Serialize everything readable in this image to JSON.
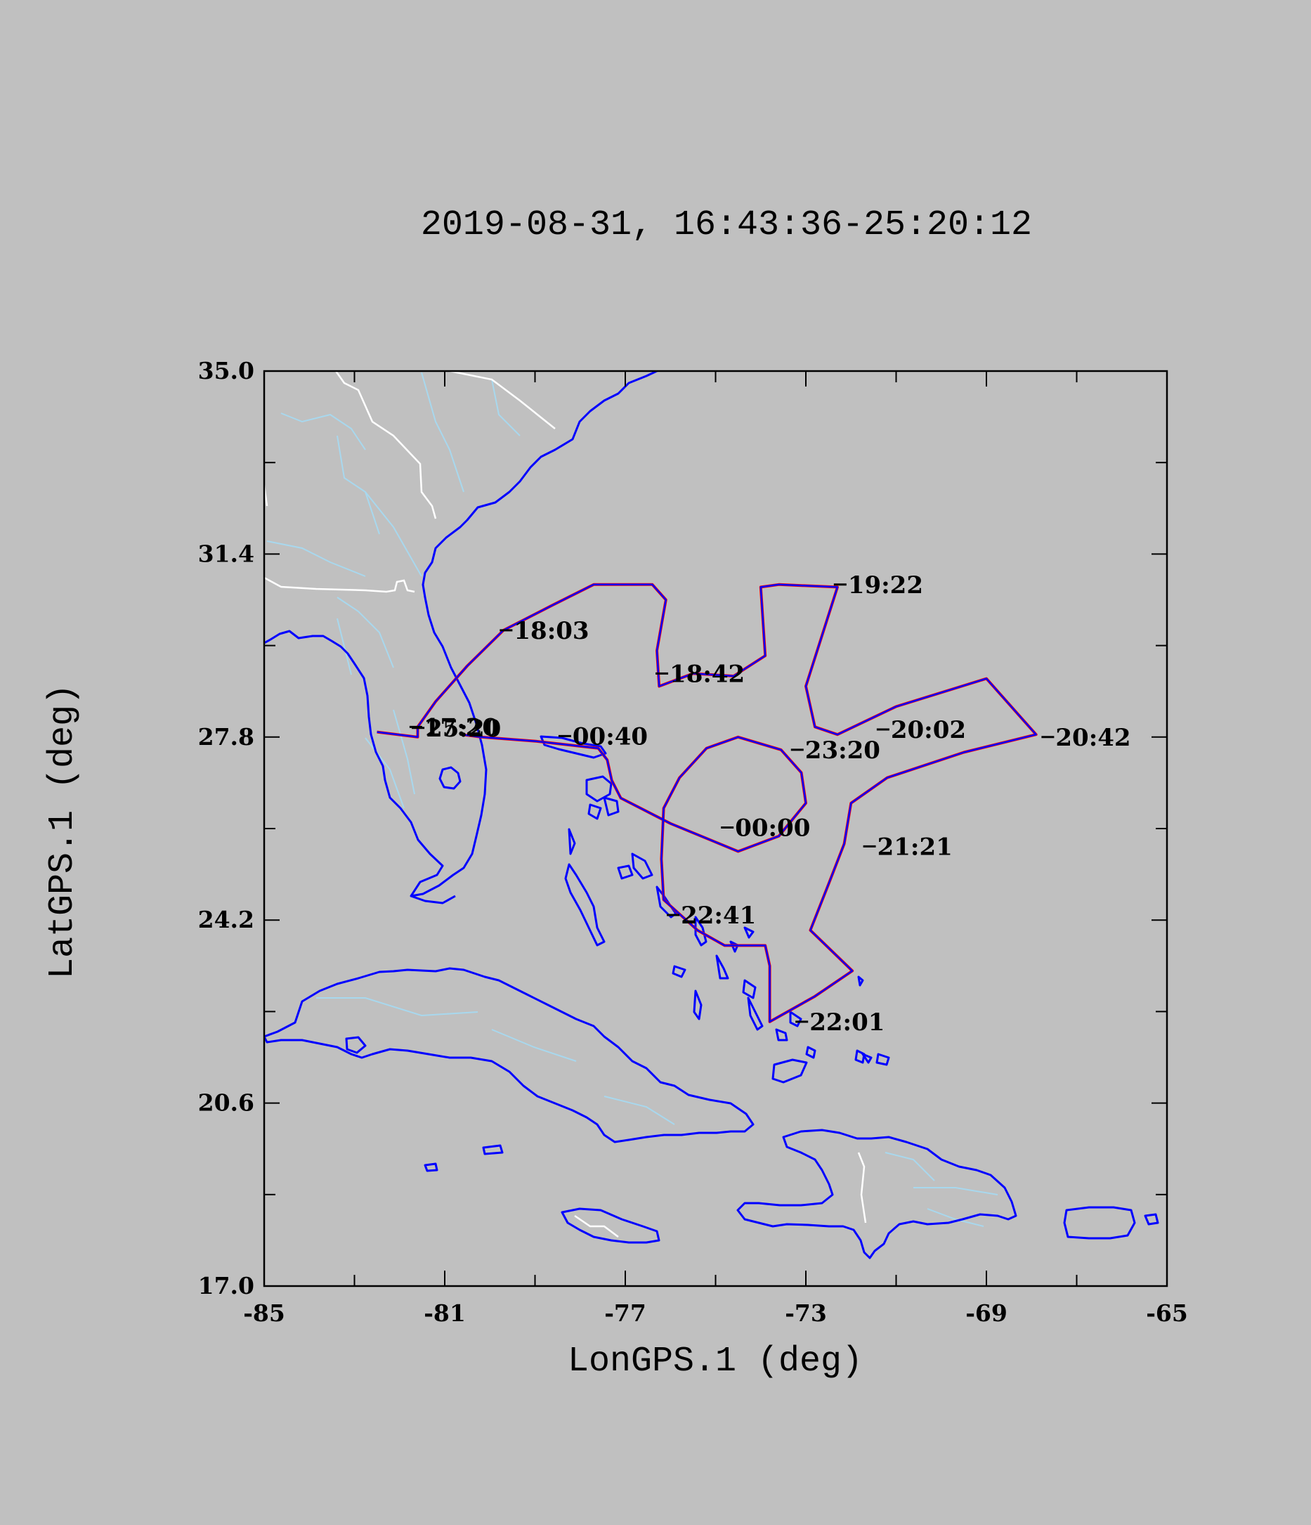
{
  "title": "2019-08-31, 16:43:36-25:20:12",
  "colors": {
    "background": "#c0c0c0",
    "coastline": "#0000ff",
    "rivers": "#a8d8ee",
    "borders": "#ffffff",
    "track": "#0000ff",
    "track_highlight": "#ff0000"
  },
  "chart_data": {
    "type": "line",
    "xlabel": "LonGPS.1 (deg)",
    "ylabel": "LatGPS.1 (deg)",
    "xlim": [
      -85,
      -65
    ],
    "ylim": [
      17.0,
      35.0
    ],
    "x_ticks": [
      "-85",
      "-81",
      "-77",
      "-73",
      "-69",
      "-65"
    ],
    "y_ticks": [
      "17.0",
      "20.6",
      "24.2",
      "27.8",
      "31.4",
      "35.0"
    ],
    "track": [
      [
        -80.62,
        27.85
      ],
      [
        -80.2,
        27.8
      ],
      [
        -79.0,
        27.72
      ],
      [
        -77.6,
        27.58
      ],
      [
        -77.4,
        27.35
      ],
      [
        -77.3,
        26.95
      ],
      [
        -77.1,
        26.6
      ],
      [
        -76.0,
        26.1
      ],
      [
        -74.5,
        25.55
      ],
      [
        -73.6,
        25.85
      ],
      [
        -73.0,
        26.5
      ],
      [
        -73.1,
        27.1
      ],
      [
        -73.55,
        27.55
      ],
      [
        -74.5,
        27.8
      ],
      [
        -75.2,
        27.58
      ],
      [
        -75.8,
        27.0
      ],
      [
        -76.15,
        26.4
      ],
      [
        -76.2,
        25.4
      ],
      [
        -76.15,
        24.6
      ],
      [
        -75.4,
        24.0
      ],
      [
        -74.8,
        23.7
      ],
      [
        -73.9,
        23.7
      ],
      [
        -73.8,
        23.3
      ],
      [
        -73.8,
        22.2
      ],
      [
        -72.8,
        22.7
      ],
      [
        -71.97,
        23.2
      ],
      [
        -72.9,
        24.0
      ],
      [
        -72.5,
        24.9
      ],
      [
        -72.15,
        25.7
      ],
      [
        -72.0,
        26.5
      ],
      [
        -71.2,
        27.0
      ],
      [
        -69.5,
        27.5
      ],
      [
        -67.9,
        27.85
      ],
      [
        -69.0,
        28.95
      ],
      [
        -71.0,
        28.4
      ],
      [
        -72.3,
        27.85
      ],
      [
        -72.8,
        28.0
      ],
      [
        -73.0,
        28.8
      ],
      [
        -72.3,
        30.75
      ],
      [
        -73.6,
        30.8
      ],
      [
        -74.0,
        30.75
      ],
      [
        -73.9,
        29.4
      ],
      [
        -74.6,
        29.0
      ],
      [
        -75.5,
        29.05
      ],
      [
        -76.25,
        28.8
      ],
      [
        -76.3,
        29.5
      ],
      [
        -76.1,
        30.5
      ],
      [
        -76.4,
        30.8
      ],
      [
        -77.7,
        30.8
      ],
      [
        -78.6,
        30.4
      ],
      [
        -79.7,
        29.9
      ],
      [
        -80.5,
        29.2
      ],
      [
        -81.2,
        28.5
      ],
      [
        -81.6,
        28.0
      ],
      [
        -81.6,
        27.8
      ],
      [
        -82.5,
        27.9
      ]
    ],
    "annotations": [
      {
        "text": "18:03",
        "lon": -79.5,
        "lat": 29.9
      },
      {
        "text": "18:42",
        "lon": -76.05,
        "lat": 29.05
      },
      {
        "text": "19:22",
        "lon": -72.1,
        "lat": 30.8
      },
      {
        "text": "20:02",
        "lon": -71.15,
        "lat": 27.95
      },
      {
        "text": "20:42",
        "lon": -67.5,
        "lat": 27.8
      },
      {
        "text": "21:21",
        "lon": -71.45,
        "lat": 25.65
      },
      {
        "text": "22:01",
        "lon": -72.95,
        "lat": 22.2
      },
      {
        "text": "22:41",
        "lon": -75.8,
        "lat": 24.3
      },
      {
        "text": "23:20",
        "lon": -73.05,
        "lat": 27.55
      },
      {
        "text": "00:00",
        "lon": -74.6,
        "lat": 26.02
      },
      {
        "text": "00:40",
        "lon": -78.2,
        "lat": 27.82
      },
      {
        "text": "17:20",
        "lon": -81.5,
        "lat": 28.0
      },
      {
        "text": "25:20",
        "lon": -81.45,
        "lat": 27.98
      }
    ]
  }
}
